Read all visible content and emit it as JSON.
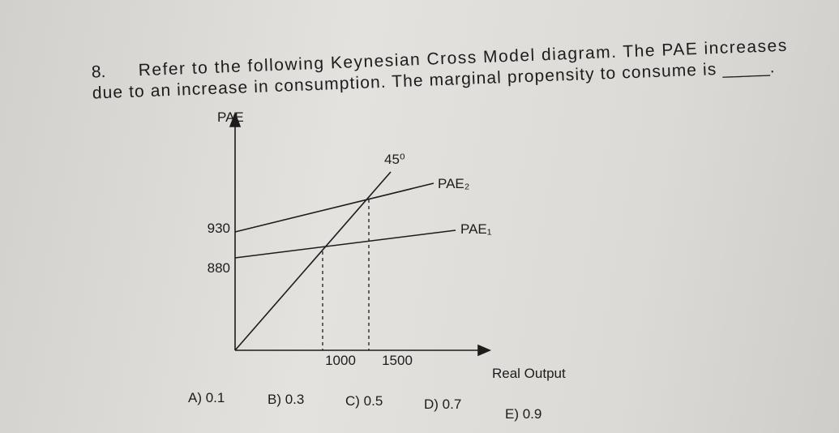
{
  "question": {
    "number": "8.",
    "lines": [
      "Refer to the following Keynesian Cross Model diagram. The PAE increases",
      "due to an increase in consumption. The marginal propensity to consume is"
    ],
    "blank": "_____."
  },
  "diagram": {
    "y_axis_label": "PAE",
    "x_axis_label": "Real Output",
    "y_labels": [
      "930",
      "880"
    ],
    "x_labels": [
      "1000",
      "1500"
    ],
    "angle_label": "45⁰",
    "line_labels": [
      "PAE₂",
      "PAE₁"
    ]
  },
  "choices": [
    "A) 0.1",
    "B) 0.3",
    "C) 0.5",
    "D) 0.7",
    "E) 0.9"
  ]
}
